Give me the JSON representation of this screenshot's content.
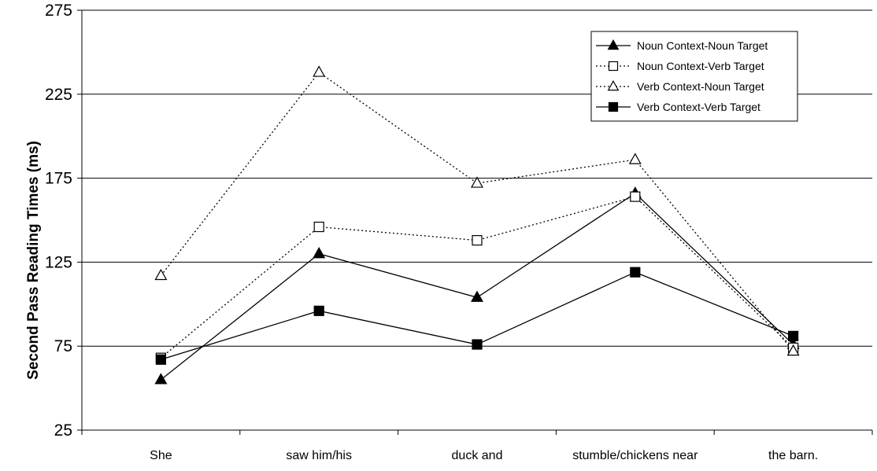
{
  "chart_data": {
    "type": "line",
    "title": "",
    "xlabel": "",
    "ylabel": "Second Pass Reading Times (ms)",
    "ylim": [
      25,
      275
    ],
    "yticks": [
      25,
      75,
      125,
      175,
      225,
      275
    ],
    "categories": [
      "She",
      "saw him/his",
      "duck and",
      "stumble/chickens near",
      "the barn."
    ],
    "grid": "horizontal",
    "legend_position": "top-right",
    "series": [
      {
        "name": "Noun Context-Noun Target",
        "values": [
          55,
          130,
          104,
          166,
          76
        ],
        "line_style": "solid",
        "marker": "filled-triangle",
        "color": "#000000"
      },
      {
        "name": "Noun Context-Verb Target",
        "values": [
          68,
          146,
          138,
          164,
          74
        ],
        "line_style": "dotted",
        "marker": "open-square",
        "color": "#000000"
      },
      {
        "name": "Verb Context-Noun Target",
        "values": [
          117,
          238,
          172,
          186,
          72
        ],
        "line_style": "dotted",
        "marker": "open-triangle",
        "color": "#000000"
      },
      {
        "name": "Verb Context-Verb Target",
        "values": [
          67,
          96,
          76,
          119,
          81
        ],
        "line_style": "solid",
        "marker": "filled-square",
        "color": "#000000"
      }
    ]
  }
}
